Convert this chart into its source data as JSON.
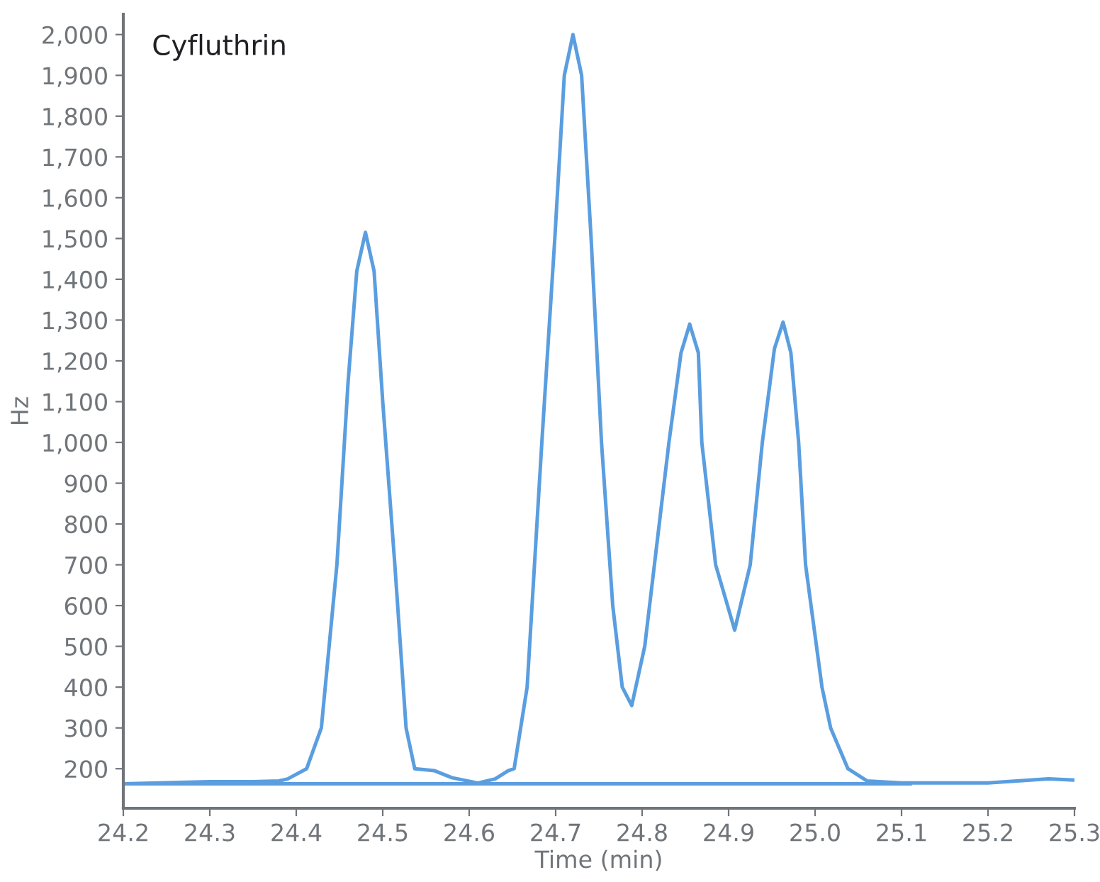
{
  "chart_data": {
    "type": "line",
    "title": "Cyfluthrin",
    "xlabel": "Time (min)",
    "ylabel": "Hz",
    "series": [
      {
        "color": "#5a9ee0",
        "x": [
          24.2,
          24.3,
          24.35,
          24.38,
          24.39,
          24.412,
          24.429,
          24.447,
          24.46,
          24.47,
          24.48,
          24.49,
          24.5,
          24.514,
          24.527,
          24.537,
          24.56,
          24.58,
          24.61,
          24.63,
          24.645,
          24.652,
          24.667,
          24.684,
          24.699,
          24.71,
          24.72,
          24.73,
          24.741,
          24.753,
          24.766,
          24.777,
          24.788,
          24.803,
          24.831,
          24.845,
          24.855,
          24.865,
          24.869,
          24.885,
          24.907,
          24.925,
          24.939,
          24.953,
          24.963,
          24.972,
          24.981,
          24.989,
          25.008,
          25.018,
          25.038,
          25.06,
          25.1,
          25.2,
          25.27,
          25.3
        ],
        "values": [
          163,
          168,
          168,
          170,
          175,
          200,
          300,
          700,
          1150,
          1420,
          1515,
          1420,
          1100,
          700,
          300,
          200,
          195,
          178,
          165,
          175,
          195,
          200,
          400,
          1000,
          1500,
          1900,
          2000,
          1900,
          1500,
          1000,
          600,
          400,
          355,
          500,
          1000,
          1220,
          1290,
          1220,
          1000,
          700,
          540,
          700,
          1000,
          1230,
          1295,
          1220,
          1000,
          700,
          400,
          300,
          200,
          170,
          165,
          165,
          175,
          172
        ]
      },
      {
        "color": "#5a9ee0",
        "x": [
          24.2,
          25.11
        ],
        "values": [
          163,
          163
        ]
      }
    ],
    "xlim": [
      24.2,
      25.3
    ],
    "xticks": [
      {
        "value": 24.2,
        "label": "24.2"
      },
      {
        "value": 24.3,
        "label": "24.3"
      },
      {
        "value": 24.4,
        "label": "24.4"
      },
      {
        "value": 24.5,
        "label": "24.5"
      },
      {
        "value": 24.6,
        "label": "24.6"
      },
      {
        "value": 24.7,
        "label": "24.7"
      },
      {
        "value": 24.8,
        "label": "24.8"
      },
      {
        "value": 24.9,
        "label": "24.9"
      },
      {
        "value": 25.0,
        "label": "25.0"
      },
      {
        "value": 25.1,
        "label": "25.1"
      },
      {
        "value": 25.2,
        "label": "25.2"
      },
      {
        "value": 25.3,
        "label": "25.3"
      }
    ],
    "ylim": [
      103,
      2050
    ],
    "yticks": [
      200,
      300,
      400,
      500,
      600,
      700,
      800,
      900,
      {
        "value": 1000,
        "label": "1,000"
      },
      {
        "value": 1100,
        "label": "1,100"
      },
      {
        "value": 1200,
        "label": "1,200"
      },
      {
        "value": 1300,
        "label": "1,300"
      },
      {
        "value": 1400,
        "label": "1,400"
      },
      {
        "value": 1500,
        "label": "1,500"
      },
      {
        "value": 1600,
        "label": "1,600"
      },
      {
        "value": 1700,
        "label": "1,700"
      },
      {
        "value": 1800,
        "label": "1,800"
      },
      {
        "value": 1900,
        "label": "1,900"
      },
      {
        "value": 2000,
        "label": "2,000"
      }
    ],
    "grid": false,
    "legend": false,
    "line_style": "solid",
    "marker": "none"
  }
}
